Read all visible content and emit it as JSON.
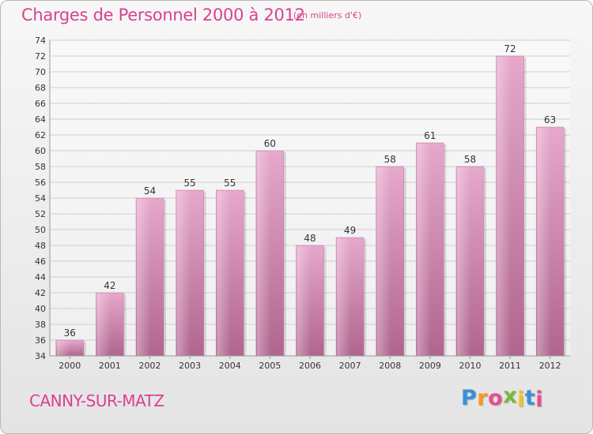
{
  "chart_data": {
    "type": "bar",
    "title": "Charges de Personnel 2000 à 2012",
    "subtitle": "(en milliers d'€)",
    "categories": [
      "2000",
      "2001",
      "2002",
      "2003",
      "2004",
      "2005",
      "2006",
      "2007",
      "2008",
      "2009",
      "2010",
      "2011",
      "2012"
    ],
    "values": [
      36,
      42,
      54,
      55,
      55,
      60,
      48,
      49,
      58,
      61,
      58,
      72,
      63
    ],
    "ylim": [
      34,
      74
    ],
    "yticks": [
      34,
      36,
      38,
      40,
      42,
      44,
      46,
      48,
      50,
      52,
      54,
      56,
      58,
      60,
      62,
      64,
      66,
      68,
      70,
      72,
      74
    ],
    "grid": true,
    "bar_color": "#d98cb8"
  },
  "commune": "CANNY-SUR-MATZ",
  "logo": {
    "letters": [
      "P",
      "r",
      "o",
      "x",
      "i",
      "t",
      "i"
    ],
    "colors": [
      "#3a8fd8",
      "#f39a1e",
      "#e84d8a",
      "#7ab83a",
      "#f2c21b",
      "#3a8fd8",
      "#e84d8a"
    ]
  }
}
